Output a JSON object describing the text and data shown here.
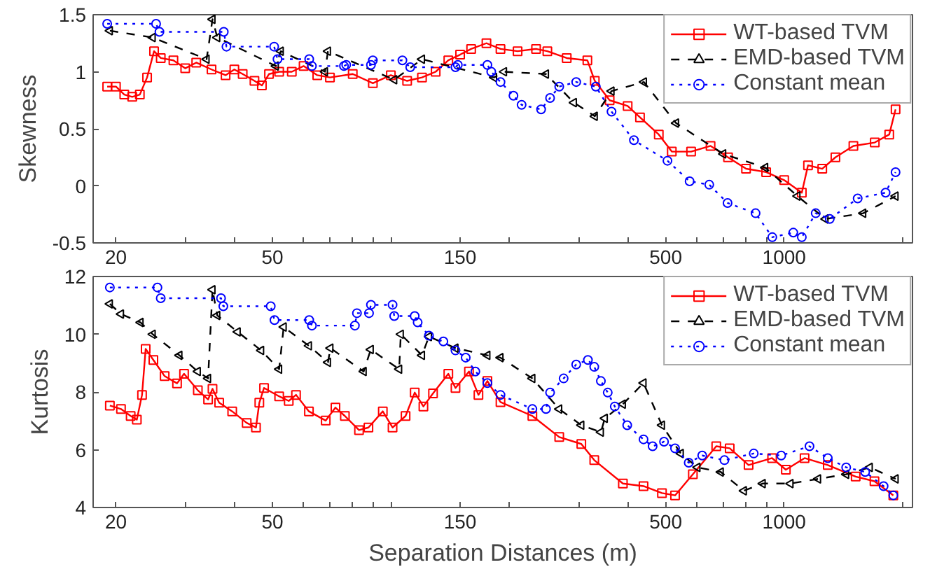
{
  "chart_data": [
    {
      "type": "line",
      "ylabel": "Skewness",
      "xlim": [
        17.5,
        2120
      ],
      "ylim": [
        -0.5,
        1.5
      ],
      "yticks": [
        -0.5,
        0,
        0.5,
        1,
        1.5
      ],
      "log": "x",
      "grid": false,
      "legend": "top right",
      "xticks": [
        20,
        {
          "value": 30,
          "label": null
        },
        {
          "value": 40,
          "label": null
        },
        50,
        {
          "value": 60,
          "label": null
        },
        {
          "value": 70,
          "label": null
        },
        {
          "value": 80,
          "label": null
        },
        {
          "value": 90,
          "label": null
        },
        {
          "value": 100,
          "label": null
        },
        150,
        {
          "value": 200,
          "label": null
        },
        {
          "value": 300,
          "label": null
        },
        {
          "value": 400,
          "label": null
        },
        500,
        {
          "value": 600,
          "label": null
        },
        {
          "value": 700,
          "label": null
        },
        {
          "value": 800,
          "label": null
        },
        {
          "value": 900,
          "label": null
        },
        1000,
        {
          "value": 2000,
          "label": null
        }
      ],
      "series": [
        {
          "name": "WT-based TVM",
          "color": "#ff0000",
          "marker": "square",
          "line_style": "solid",
          "x": [
            19,
            20,
            21,
            22,
            23,
            24,
            25,
            26,
            28,
            30,
            32,
            35,
            38,
            40,
            42,
            45,
            47,
            49,
            52,
            56,
            60,
            65,
            70,
            80,
            90,
            100,
            110,
            120,
            130,
            140,
            150,
            160,
            175,
            190,
            210,
            234,
            250,
            280,
            316,
            330,
            360,
            400,
            430,
            480,
            518,
            580,
            650,
            720,
            800,
            900,
            1000,
            1109,
            1150,
            1250,
            1350,
            1500,
            1700,
            1850,
            1920
          ],
          "values": [
            0.87,
            0.87,
            0.8,
            0.78,
            0.8,
            0.95,
            1.18,
            1.12,
            1.1,
            1.03,
            1.08,
            1.02,
            0.97,
            1.02,
            0.98,
            0.92,
            0.88,
            0.98,
            1.0,
            1.0,
            1.05,
            0.97,
            0.95,
            0.98,
            0.9,
            0.97,
            0.92,
            0.95,
            1.0,
            1.1,
            1.15,
            1.2,
            1.25,
            1.2,
            1.18,
            1.2,
            1.18,
            1.12,
            1.1,
            0.92,
            0.75,
            0.7,
            0.6,
            0.45,
            0.3,
            0.3,
            0.35,
            0.25,
            0.15,
            0.12,
            0.05,
            -0.06,
            0.18,
            0.15,
            0.25,
            0.35,
            0.38,
            0.45,
            0.67
          ]
        },
        {
          "name": "EMD-based TVM",
          "color": "#000000",
          "marker": "triangle",
          "line_style": "dashed",
          "x": [
            19.3,
            24.8,
            34,
            35.2,
            36.2,
            51,
            52.5,
            68,
            69.2,
            102,
            120,
            183,
            194,
            248,
            292,
            330,
            364,
            440,
            531,
            700,
            895,
            1081,
            1274,
            1589,
            1920
          ],
          "values": [
            1.36,
            1.3,
            1.11,
            1.46,
            1.3,
            1.05,
            1.18,
            1.0,
            1.18,
            0.93,
            1.11,
            0.95,
            1.0,
            0.98,
            0.73,
            0.61,
            0.83,
            0.91,
            0.55,
            0.28,
            0.16,
            -0.09,
            -0.29,
            -0.24,
            -0.09
          ]
        },
        {
          "name": "Constant mean",
          "color": "#0000ff",
          "marker": "circle",
          "line_style": "dotted",
          "x": [
            19,
            25.3,
            25.8,
            37.6,
            38.2,
            50.5,
            51.5,
            62,
            63,
            76,
            77,
            89,
            90,
            107,
            112,
            146,
            148,
            176,
            180,
            190,
            205,
            215,
            241,
            254,
            268,
            296,
            332,
            364,
            415,
            505,
            575,
            645,
            718,
            846,
            933,
            1055,
            1109,
            1203,
            1306,
            1538,
            1811,
            1920
          ],
          "values": [
            1.42,
            1.42,
            1.35,
            1.35,
            1.22,
            1.22,
            1.11,
            1.11,
            1.05,
            1.05,
            1.06,
            1.06,
            1.1,
            1.1,
            1.04,
            1.04,
            1.06,
            1.06,
            1.0,
            0.91,
            0.79,
            0.71,
            0.67,
            0.77,
            0.87,
            0.91,
            0.87,
            0.65,
            0.4,
            0.22,
            0.04,
            0.01,
            -0.15,
            -0.24,
            -0.45,
            -0.41,
            -0.45,
            -0.24,
            -0.29,
            -0.11,
            -0.06,
            0.12
          ]
        }
      ]
    },
    {
      "type": "line",
      "ylabel": "Kurtosis",
      "xlabel": "Separation Distances (m)",
      "xlim": [
        17.5,
        2120
      ],
      "ylim": [
        4,
        12
      ],
      "yticks": [
        4,
        6,
        8,
        10,
        12
      ],
      "log": "x",
      "grid": false,
      "legend": "top right",
      "xticks": [
        20,
        {
          "value": 30,
          "label": null
        },
        {
          "value": 40,
          "label": null
        },
        50,
        {
          "value": 60,
          "label": null
        },
        {
          "value": 70,
          "label": null
        },
        {
          "value": 80,
          "label": null
        },
        {
          "value": 90,
          "label": null
        },
        {
          "value": 100,
          "label": null
        },
        150,
        {
          "value": 200,
          "label": null
        },
        {
          "value": 300,
          "label": null
        },
        {
          "value": 400,
          "label": null
        },
        500,
        {
          "value": 600,
          "label": null
        },
        {
          "value": 700,
          "label": null
        },
        {
          "value": 800,
          "label": null
        },
        {
          "value": 900,
          "label": null
        },
        1000,
        {
          "value": 2000,
          "label": null
        }
      ],
      "series": [
        {
          "name": "WT-based TVM",
          "color": "#ff0000",
          "marker": "square",
          "line_style": "solid",
          "x": [
            19.3,
            20.6,
            21.8,
            22.6,
            23.3,
            23.8,
            24.9,
            26.6,
            28.6,
            29.8,
            32.3,
            34.3,
            35.2,
            36.6,
            39.5,
            43,
            45.4,
            46.3,
            47.6,
            52,
            55,
            57.4,
            61.9,
            68.3,
            72.3,
            76.4,
            83,
            87.7,
            95.4,
            101,
            109,
            115,
            121,
            128,
            140,
            146,
            158,
            167,
            176,
            190,
            229,
            268,
            305,
            329,
            389,
            439,
            489,
            528,
            586,
            672,
            727,
            812,
            932,
            1010,
            1127,
            1291,
            1520,
            1697,
            1895
          ],
          "values": [
            7.53,
            7.41,
            7.17,
            7.04,
            7.9,
            9.49,
            9.11,
            8.55,
            8.3,
            8.63,
            8.06,
            7.74,
            8.11,
            7.63,
            7.33,
            6.93,
            6.77,
            7.63,
            8.14,
            7.85,
            7.69,
            7.9,
            7.33,
            7.01,
            7.46,
            7.17,
            6.68,
            6.77,
            7.33,
            6.77,
            7.17,
            7.98,
            7.5,
            7.95,
            8.63,
            8.14,
            8.71,
            7.9,
            8.38,
            7.65,
            7.17,
            6.44,
            6.2,
            5.64,
            4.83,
            4.74,
            4.5,
            4.42,
            5.15,
            6.12,
            6.05,
            5.47,
            5.71,
            5.31,
            5.71,
            5.47,
            5.07,
            4.91,
            4.42
          ]
        },
        {
          "name": "EMD-based TVM",
          "color": "#000000",
          "marker": "triangle",
          "line_style": "dashed",
          "x": [
            19.3,
            20.6,
            23.1,
            24.8,
            29,
            32.3,
            34.3,
            35.2,
            36.2,
            40.8,
            46.8,
            52,
            53.4,
            61.9,
            69.2,
            70.2,
            85.3,
            88.9,
            105,
            106,
            120,
            125,
            146,
            176,
            190,
            229,
            268,
            305,
            342,
            350,
            389,
            439,
            489,
            546,
            602,
            690,
            790,
            882,
            1038,
            1220,
            1438,
            1651,
            1921
          ],
          "values": [
            11.05,
            10.7,
            10.41,
            10.0,
            9.27,
            8.71,
            8.47,
            11.54,
            10.65,
            10.08,
            9.44,
            8.79,
            10.25,
            9.6,
            9.03,
            9.52,
            8.71,
            9.47,
            8.79,
            10.0,
            9.27,
            9.92,
            9.52,
            9.27,
            9.19,
            8.47,
            7.41,
            6.85,
            6.61,
            7.09,
            7.58,
            8.31,
            6.85,
            5.87,
            5.39,
            5.23,
            4.58,
            4.83,
            4.83,
            4.99,
            5.15,
            5.39,
            4.99
          ]
        },
        {
          "name": "Constant mean",
          "color": "#0000ff",
          "marker": "circle",
          "line_style": "dotted",
          "x": [
            19.3,
            25.5,
            26,
            37,
            37.5,
            49.5,
            50.6,
            62,
            63,
            81,
            82,
            88,
            89,
            101,
            102,
            115,
            117,
            125,
            136,
            146,
            155,
            164,
            176,
            190,
            229,
            248,
            254,
            275,
            296,
            317,
            329,
            342,
            356,
            371,
            399,
            439,
            463,
            495,
            528,
            572,
            619,
            705,
            837,
            983,
            1160,
            1291,
            1438,
            1607,
            1790,
            1895
          ],
          "values": [
            11.62,
            11.62,
            11.25,
            11.25,
            10.97,
            10.97,
            10.49,
            10.49,
            10.3,
            10.3,
            10.73,
            10.73,
            11.02,
            11.02,
            10.63,
            10.63,
            10.41,
            9.95,
            9.75,
            9.44,
            9.19,
            8.71,
            8.31,
            7.9,
            7.41,
            7.41,
            7.98,
            8.47,
            8.95,
            9.11,
            8.87,
            8.38,
            7.98,
            7.5,
            6.85,
            6.36,
            6.12,
            6.28,
            6.05,
            5.55,
            5.8,
            5.64,
            5.87,
            5.8,
            6.12,
            5.71,
            5.39,
            5.23,
            4.74,
            4.42
          ]
        }
      ]
    }
  ]
}
